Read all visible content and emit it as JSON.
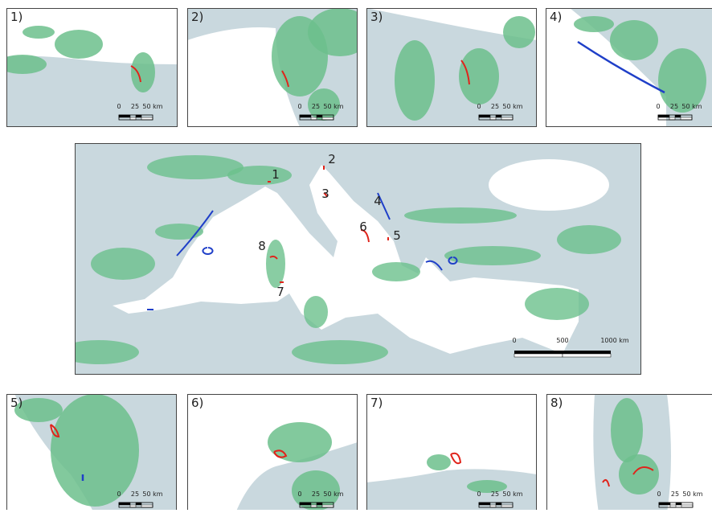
{
  "panels": [
    {
      "label": "1)",
      "scale_labels": [
        "0",
        "25",
        "50 km"
      ]
    },
    {
      "label": "2)",
      "scale_labels": [
        "0",
        "25",
        "50 km"
      ]
    },
    {
      "label": "3)",
      "scale_labels": [
        "0",
        "25",
        "50 km"
      ]
    },
    {
      "label": "4)",
      "scale_labels": [
        "0",
        "25",
        "50 km"
      ]
    },
    {
      "label": "5)",
      "scale_labels": [
        "0",
        "25",
        "50 km"
      ]
    },
    {
      "label": "6)",
      "scale_labels": [
        "0",
        "25",
        "50 km"
      ]
    },
    {
      "label": "7)",
      "scale_labels": [
        "0",
        "25",
        "50 km"
      ]
    },
    {
      "label": "8)",
      "scale_labels": [
        "0",
        "25",
        "50 km"
      ]
    }
  ],
  "main_map": {
    "site_labels": [
      "1",
      "2",
      "3",
      "4",
      "5",
      "6",
      "7",
      "8"
    ],
    "scale_labels": [
      "0",
      "500",
      "1000 km"
    ]
  }
}
